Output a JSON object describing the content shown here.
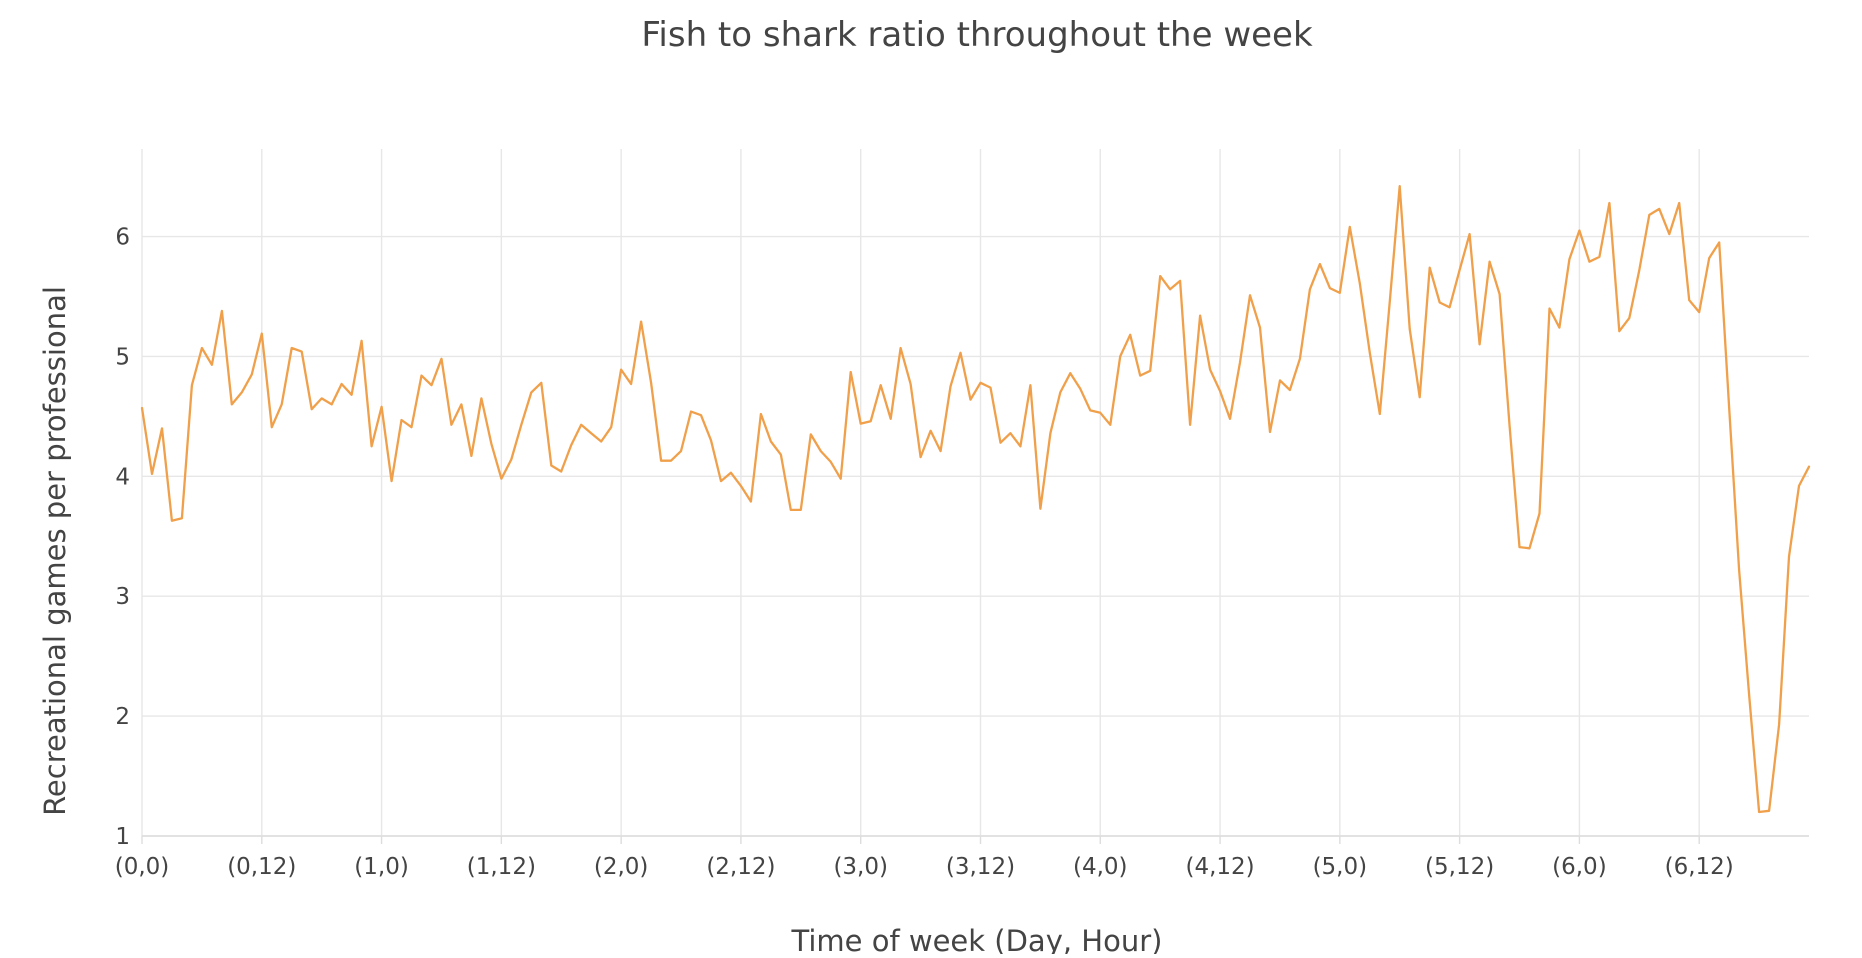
{
  "colors": {
    "line": "#f0a04a",
    "grid": "#e7e7e7",
    "text": "#444444"
  },
  "chart_data": {
    "type": "line",
    "title": "Fish to shark ratio throughout the week",
    "xlabel": "Time of week (Day, Hour)",
    "ylabel": "Recreational games per professional",
    "x_tick_labels": [
      "(0,0)",
      "(0,12)",
      "(1,0)",
      "(1,12)",
      "(2,0)",
      "(2,12)",
      "(3,0)",
      "(3,12)",
      "(4,0)",
      "(4,12)",
      "(5,0)",
      "(5,12)",
      "(6,0)",
      "(6,12)"
    ],
    "y_tick_labels": [
      "1",
      "2",
      "3",
      "4",
      "5",
      "6"
    ],
    "y_ticks": [
      1,
      2,
      3,
      4,
      5,
      6
    ],
    "xlim": [
      0,
      167
    ],
    "ylim": [
      1,
      6.73
    ],
    "grid": true,
    "series": [
      {
        "values": [
          4.57,
          4.02,
          4.4,
          3.63,
          3.65,
          4.76,
          5.07,
          4.93,
          5.38,
          4.6,
          4.7,
          4.85,
          5.19,
          4.41,
          4.6,
          5.07,
          5.04,
          4.56,
          4.65,
          4.6,
          4.77,
          4.68,
          5.13,
          4.25,
          4.58,
          3.96,
          4.47,
          4.41,
          4.84,
          4.76,
          4.98,
          4.43,
          4.6,
          4.17,
          4.65,
          4.27,
          3.98,
          4.14,
          4.43,
          4.7,
          4.78,
          4.09,
          4.04,
          4.26,
          4.43,
          4.36,
          4.29,
          4.41,
          4.89,
          4.77,
          5.29,
          4.78,
          4.13,
          4.13,
          4.21,
          4.54,
          4.51,
          4.3,
          3.96,
          4.03,
          3.92,
          3.79,
          4.52,
          4.29,
          4.18,
          3.72,
          3.72,
          4.35,
          4.21,
          4.12,
          3.98,
          4.87,
          4.44,
          4.46,
          4.76,
          4.48,
          5.07,
          4.77,
          4.16,
          4.38,
          4.21,
          4.75,
          5.03,
          4.64,
          4.78,
          4.74,
          4.28,
          4.36,
          4.25,
          4.76,
          3.73,
          4.36,
          4.7,
          4.86,
          4.73,
          4.55,
          4.53,
          4.43,
          5.0,
          5.18,
          4.84,
          4.88,
          5.67,
          5.56,
          5.63,
          4.43,
          5.34,
          4.89,
          4.71,
          4.48,
          4.95,
          5.51,
          5.24,
          4.37,
          4.8,
          4.72,
          4.98,
          5.56,
          5.77,
          5.57,
          5.53,
          6.08,
          5.61,
          5.03,
          4.52,
          5.46,
          6.42,
          5.23,
          4.66,
          5.74,
          5.45,
          5.41,
          5.72,
          6.02,
          5.1,
          5.79,
          5.52,
          4.43,
          3.41,
          3.4,
          3.69,
          5.4,
          5.24,
          5.81,
          6.05,
          5.79,
          5.83,
          6.28,
          5.21,
          5.32,
          5.72,
          6.18,
          6.23,
          6.02,
          6.28,
          5.47,
          5.37,
          5.82,
          5.95,
          4.58,
          3.22,
          2.18,
          1.2,
          1.21,
          1.93,
          3.33,
          3.92,
          4.08
        ]
      }
    ]
  }
}
